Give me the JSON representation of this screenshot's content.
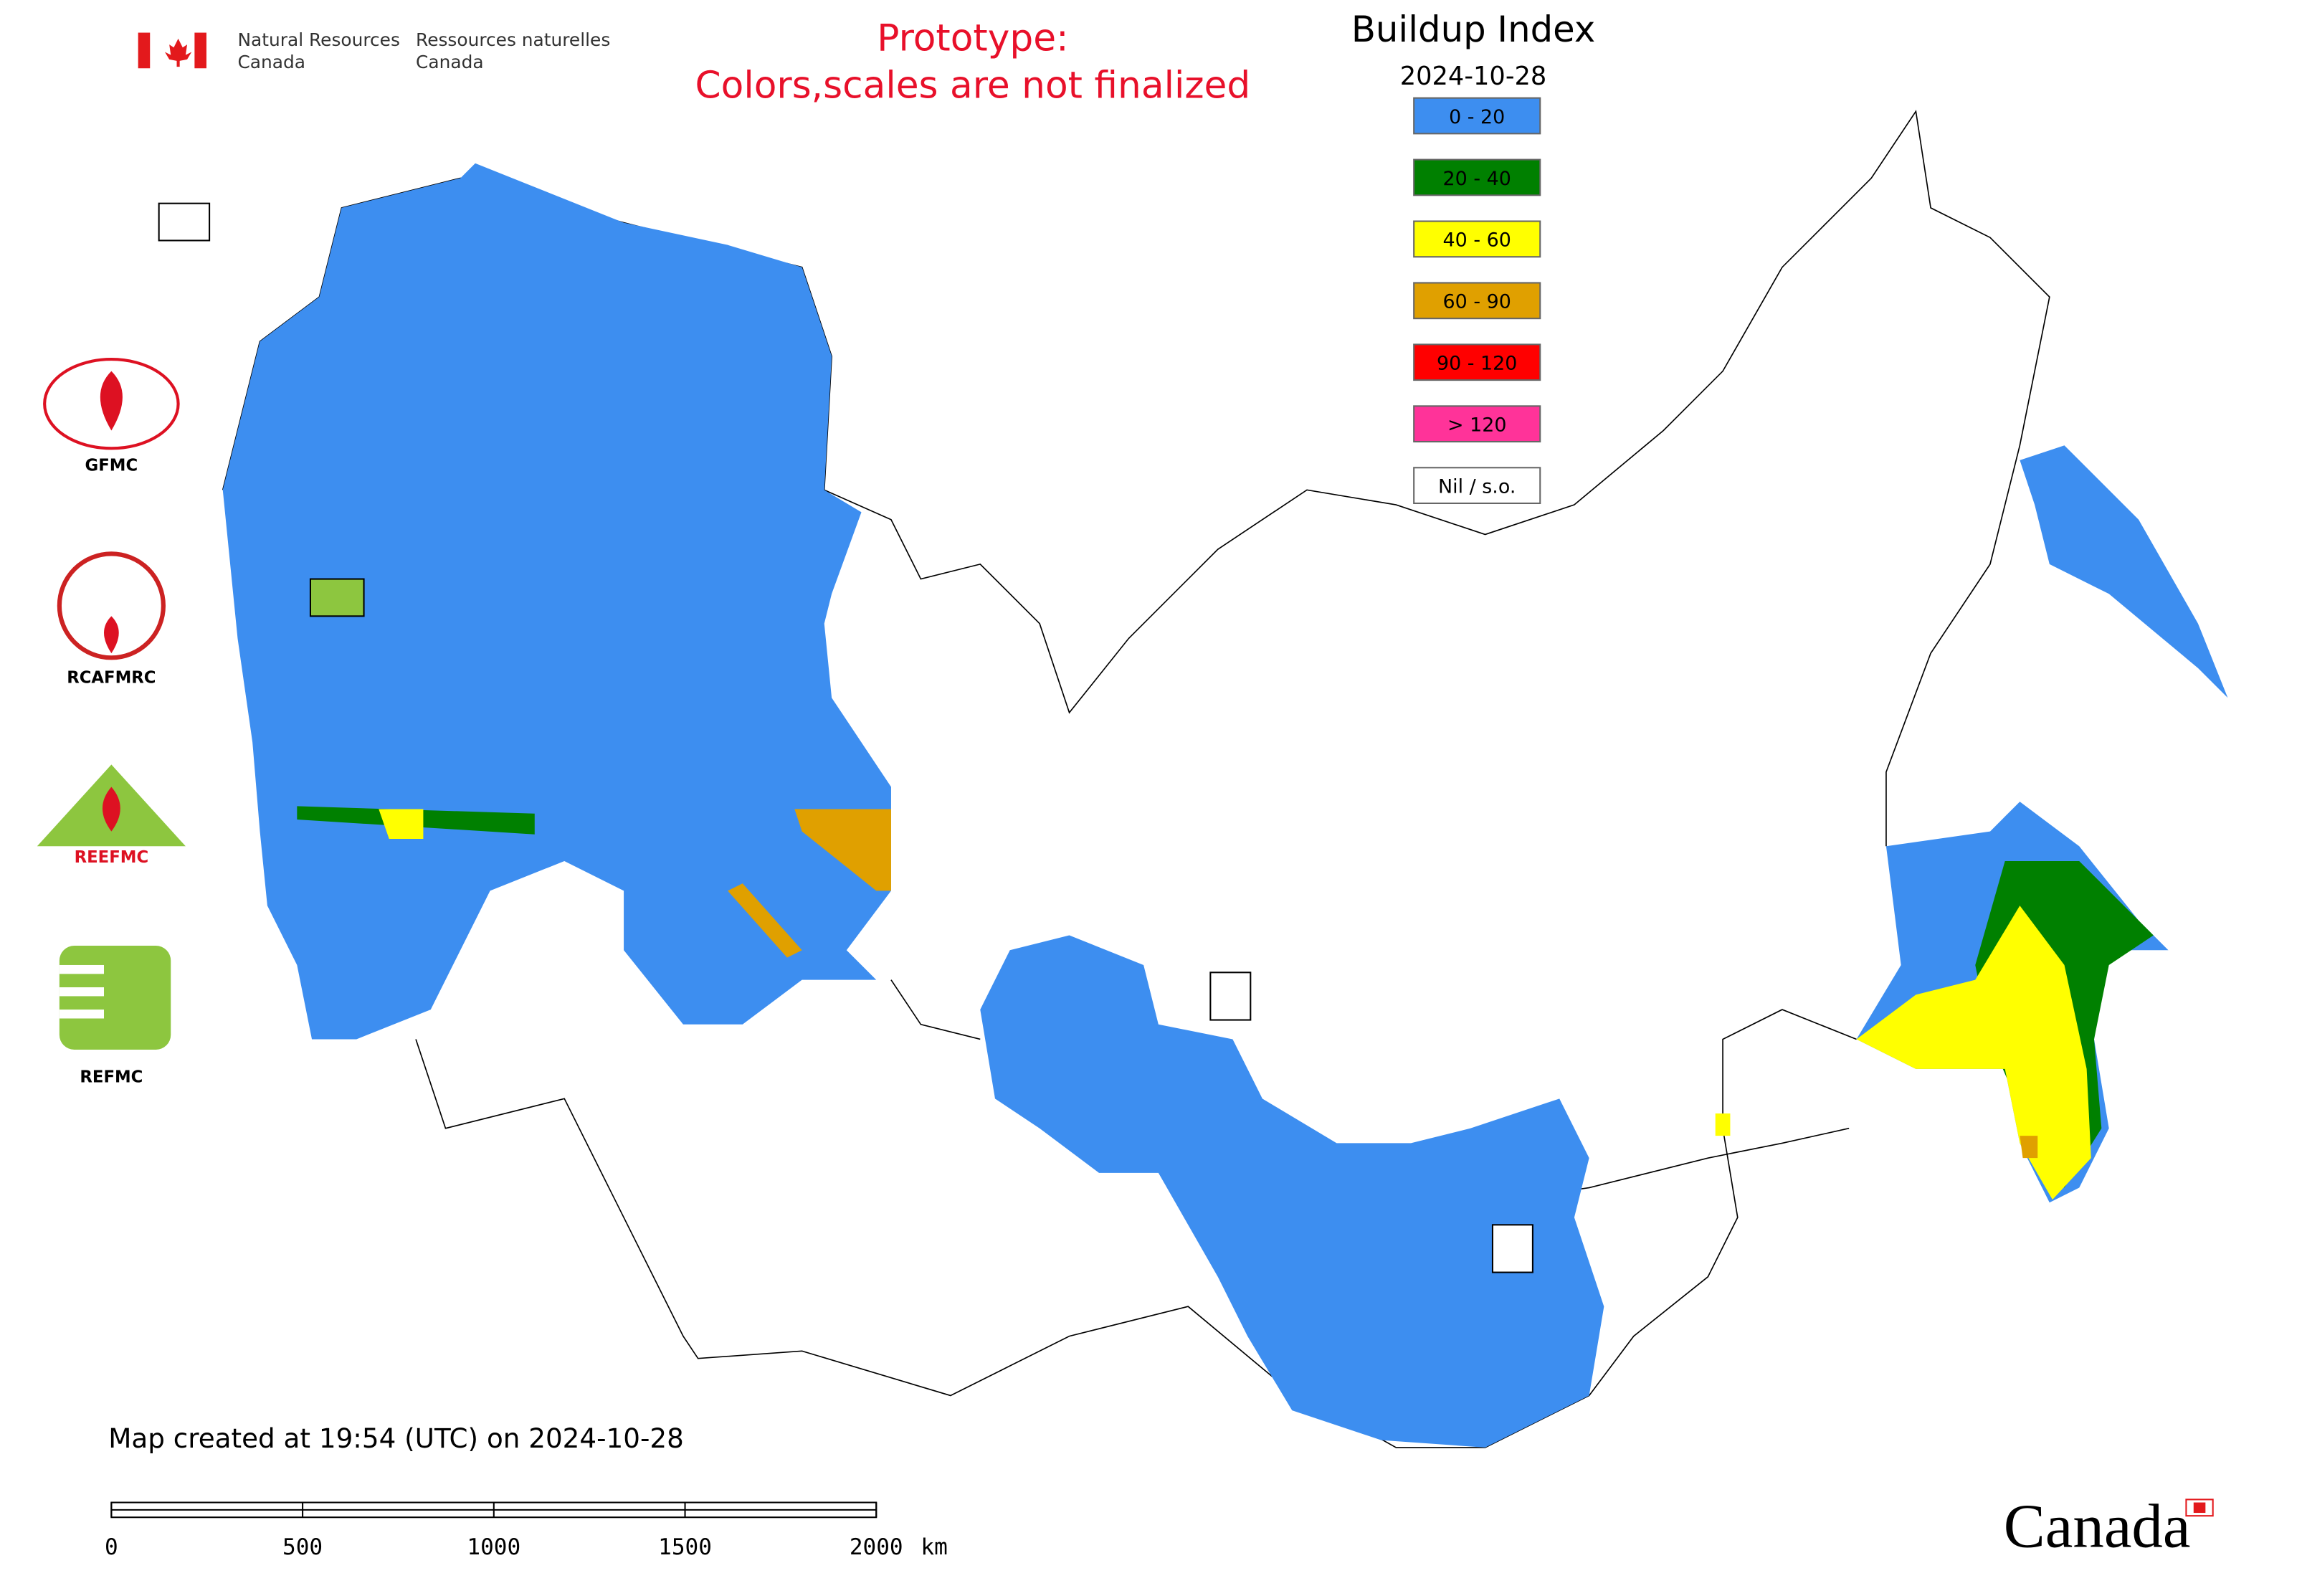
{
  "agency": {
    "en_line1": "Natural Resources",
    "en_line2": "Canada",
    "fr_line1": "Ressources naturelles",
    "fr_line2": "Canada"
  },
  "notice": {
    "line1": "Prototype:",
    "line2": "Colors,scales are not finalized"
  },
  "legend": {
    "title": "Buildup Index",
    "date": "2024-10-28",
    "items": [
      {
        "label": "0 - 20",
        "color": "#3d8ef0"
      },
      {
        "label": "20 - 40",
        "color": "#008000"
      },
      {
        "label": "40 - 60",
        "color": "#ffff00"
      },
      {
        "label": "60 - 90",
        "color": "#e0a000"
      },
      {
        "label": "90 - 120",
        "color": "#ff0000"
      },
      {
        "label": "> 120",
        "color": "#ff3399"
      },
      {
        "label": "Nil / s.o.",
        "color": "#ffffff"
      }
    ]
  },
  "logos": [
    {
      "label": "GFMC"
    },
    {
      "label": "RCAFMRC"
    },
    {
      "label": "REEFMC"
    },
    {
      "label": "REFMC"
    }
  ],
  "footer": {
    "created": "Map created at 19:54 (UTC) on 2024-10-28",
    "scale": {
      "ticks": [
        0,
        500,
        1000,
        1500,
        2000
      ],
      "unit": "km"
    },
    "wordmark": "Canada"
  }
}
